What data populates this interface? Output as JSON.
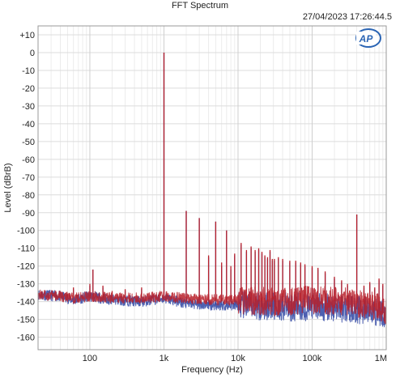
{
  "chart_data": {
    "type": "line",
    "title": "FFT Spectrum",
    "timestamp": "27/04/2023 17:26:44.5",
    "logo": "AP",
    "xlabel": "Frequency (Hz)",
    "ylabel": "Level (dBrB)",
    "x_scale": "log",
    "xlim": [
      20,
      1000000
    ],
    "ylim": [
      -167,
      15
    ],
    "grid": true,
    "x_ticks": [
      {
        "value": 100,
        "label": "100"
      },
      {
        "value": 1000,
        "label": "1k"
      },
      {
        "value": 10000,
        "label": "10k"
      },
      {
        "value": 100000,
        "label": "100k"
      },
      {
        "value": 1000000,
        "label": "1M"
      }
    ],
    "y_ticks": [
      {
        "value": 10,
        "label": "+10"
      },
      {
        "value": 0,
        "label": "0"
      },
      {
        "value": -10,
        "label": "-10"
      },
      {
        "value": -20,
        "label": "-20"
      },
      {
        "value": -30,
        "label": "-30"
      },
      {
        "value": -40,
        "label": "-40"
      },
      {
        "value": -50,
        "label": "-50"
      },
      {
        "value": -60,
        "label": "-60"
      },
      {
        "value": -70,
        "label": "-70"
      },
      {
        "value": -80,
        "label": "-80"
      },
      {
        "value": -90,
        "label": "-90"
      },
      {
        "value": -100,
        "label": "-100"
      },
      {
        "value": -110,
        "label": "-110"
      },
      {
        "value": -120,
        "label": "-120"
      },
      {
        "value": -130,
        "label": "-130"
      },
      {
        "value": -140,
        "label": "-140"
      },
      {
        "value": -150,
        "label": "-150"
      },
      {
        "value": -160,
        "label": "-160"
      }
    ],
    "series": [
      {
        "color": "#3a4fa8",
        "floor": [
          [
            20,
            -136
          ],
          [
            40,
            -137
          ],
          [
            60,
            -139
          ],
          [
            100,
            -137
          ],
          [
            200,
            -139
          ],
          [
            500,
            -140
          ],
          [
            1000,
            -138
          ],
          [
            2000,
            -141
          ],
          [
            5000,
            -142
          ],
          [
            10000,
            -142
          ],
          [
            30000,
            -143
          ],
          [
            100000,
            -143
          ],
          [
            300000,
            -144
          ],
          [
            600000,
            -145
          ],
          [
            1000000,
            -147
          ]
        ],
        "peaks": [
          [
            50,
            -136
          ],
          [
            60,
            -133
          ],
          [
            80,
            -138
          ],
          [
            100,
            -131
          ],
          [
            110,
            -122
          ],
          [
            150,
            -132
          ],
          [
            200,
            -135
          ],
          [
            300,
            -134
          ],
          [
            500,
            -133
          ],
          [
            1000,
            0
          ],
          [
            2000,
            -89
          ],
          [
            3000,
            -93
          ],
          [
            4000,
            -115
          ],
          [
            5000,
            -95
          ],
          [
            6000,
            -120
          ],
          [
            7000,
            -100
          ],
          [
            8000,
            -122
          ],
          [
            9000,
            -114
          ],
          [
            11000,
            -108
          ],
          [
            13000,
            -112
          ],
          [
            15000,
            -110
          ],
          [
            17000,
            -112
          ],
          [
            19000,
            -111
          ],
          [
            21000,
            -113
          ],
          [
            23000,
            -115
          ],
          [
            25000,
            -116
          ],
          [
            27000,
            -112
          ],
          [
            29000,
            -117
          ],
          [
            31000,
            -117
          ],
          [
            35000,
            -116
          ],
          [
            40000,
            -117
          ],
          [
            50000,
            -118
          ],
          [
            60000,
            -118
          ],
          [
            70000,
            -119
          ],
          [
            80000,
            -120
          ],
          [
            100000,
            -121
          ],
          [
            120000,
            -122
          ],
          [
            150000,
            -124
          ],
          [
            200000,
            -127
          ],
          [
            250000,
            -129
          ],
          [
            300000,
            -131
          ],
          [
            400000,
            -91
          ],
          [
            500000,
            -132
          ],
          [
            600000,
            -130
          ],
          [
            700000,
            -133
          ],
          [
            800000,
            -128
          ],
          [
            900000,
            -131
          ]
        ]
      },
      {
        "color": "#b8202a",
        "floor": [
          [
            20,
            -136
          ],
          [
            40,
            -137
          ],
          [
            60,
            -138
          ],
          [
            100,
            -137
          ],
          [
            200,
            -138
          ],
          [
            500,
            -138
          ],
          [
            1000,
            -137
          ],
          [
            2000,
            -138
          ],
          [
            5000,
            -139
          ],
          [
            10000,
            -139
          ],
          [
            30000,
            -140
          ],
          [
            100000,
            -139
          ],
          [
            300000,
            -140
          ],
          [
            600000,
            -142
          ],
          [
            1000000,
            -145
          ]
        ],
        "peaks": [
          [
            50,
            -136
          ],
          [
            60,
            -132
          ],
          [
            80,
            -138
          ],
          [
            100,
            -130
          ],
          [
            110,
            -122
          ],
          [
            150,
            -131
          ],
          [
            200,
            -134
          ],
          [
            300,
            -133
          ],
          [
            500,
            -132
          ],
          [
            1000,
            0
          ],
          [
            2000,
            -89
          ],
          [
            3000,
            -93
          ],
          [
            4000,
            -114
          ],
          [
            5000,
            -95
          ],
          [
            6000,
            -118
          ],
          [
            7000,
            -100
          ],
          [
            8000,
            -120
          ],
          [
            9000,
            -113
          ],
          [
            11000,
            -107
          ],
          [
            13000,
            -111
          ],
          [
            15000,
            -109
          ],
          [
            17000,
            -111
          ],
          [
            19000,
            -110
          ],
          [
            21000,
            -112
          ],
          [
            23000,
            -114
          ],
          [
            25000,
            -115
          ],
          [
            27000,
            -111
          ],
          [
            29000,
            -116
          ],
          [
            31000,
            -116
          ],
          [
            35000,
            -115
          ],
          [
            40000,
            -116
          ],
          [
            50000,
            -117
          ],
          [
            60000,
            -117
          ],
          [
            70000,
            -118
          ],
          [
            80000,
            -119
          ],
          [
            100000,
            -120
          ],
          [
            120000,
            -121
          ],
          [
            150000,
            -123
          ],
          [
            200000,
            -126
          ],
          [
            250000,
            -128
          ],
          [
            300000,
            -130
          ],
          [
            400000,
            -91
          ],
          [
            500000,
            -131
          ],
          [
            600000,
            -129
          ],
          [
            700000,
            -132
          ],
          [
            800000,
            -127
          ],
          [
            900000,
            -130
          ]
        ]
      }
    ]
  }
}
